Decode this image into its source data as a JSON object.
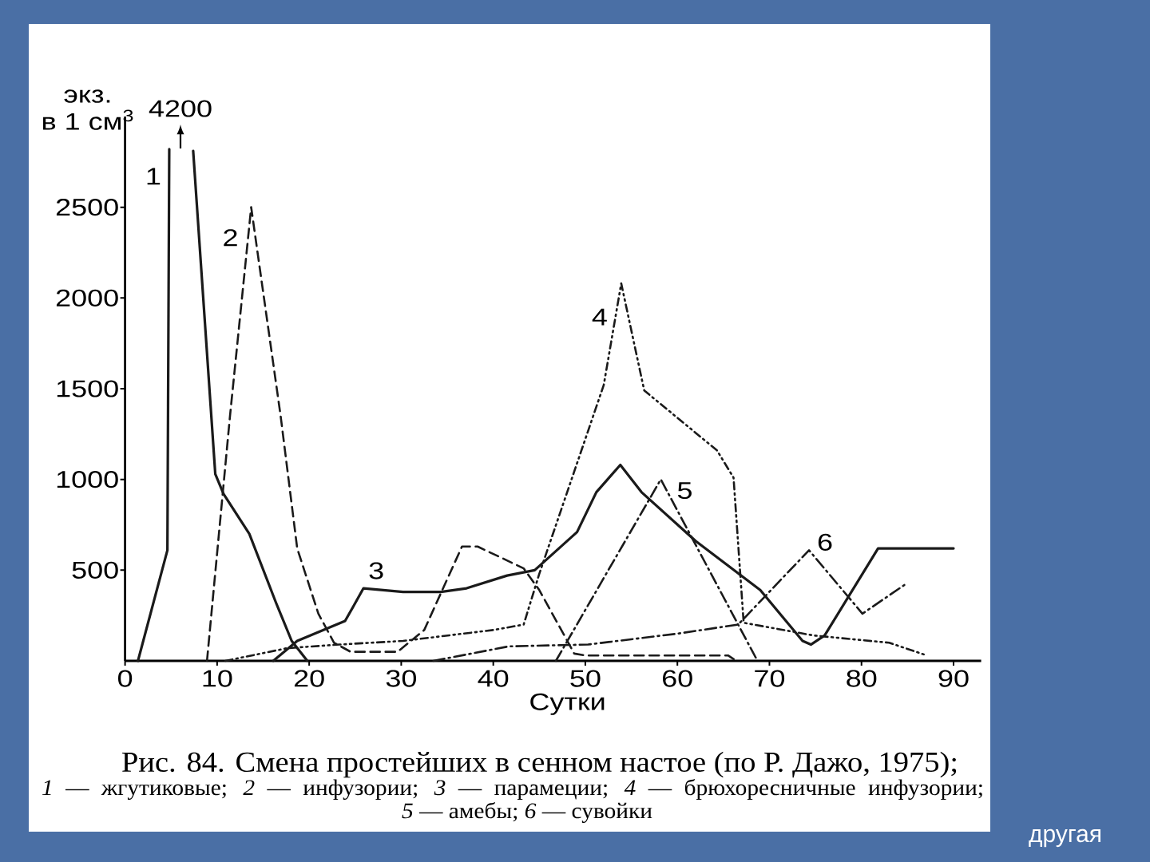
{
  "chart_data": {
    "type": "line",
    "title": "Рис. 84. Смена простейших в сенном настое (по Р. Дажо, 1975);",
    "xlabel": "Сутки",
    "ylabel": "экз. в 1 см$^{3}$",
    "xlim": [
      0,
      93
    ],
    "xticks": [
      0,
      10,
      20,
      30,
      40,
      50,
      60,
      70,
      80,
      90
    ],
    "ylim": [
      0,
      3000
    ],
    "yticks": [
      500,
      1000,
      1500,
      2000,
      2500
    ],
    "annotations": [
      "4200",
      "*1* — жгутиковые; *2* — инфузории; *3* — парамеции; *4* — брюхоресничные инфузории;",
      "*5* — амебы; *6* — сувойки",
      "другая"
    ],
    "series": [
      {
        "name": "1",
        "color": "#1a1a1a",
        "line_style": "solid",
        "x": [
          1.4,
          4.6,
          4.8,
          6.1,
          7.4,
          9.8,
          10.7,
          13.5,
          16.4,
          18.1,
          19.8
        ],
        "values": [
          0,
          610,
          2820,
          null,
          2810,
          1030,
          920,
          700,
          320,
          110,
          0
        ]
      },
      {
        "name": "2",
        "color": "#1a1a1a",
        "line_style": "dashed",
        "x": [
          8.9,
          11.4,
          13.7,
          16.9,
          18.7,
          21.0,
          22.7,
          24.5,
          29.6,
          32.5,
          36.6,
          38.3,
          43.3,
          45.0,
          48.8,
          50.0,
          65.5,
          66.4
        ],
        "values": [
          0,
          1350,
          2500,
          1350,
          620,
          260,
          100,
          50,
          50,
          170,
          630,
          630,
          510,
          390,
          40,
          30,
          30,
          0
        ]
      },
      {
        "name": "3",
        "color": "#1a1a1a",
        "line_style": "solid",
        "x": [
          16.1,
          18.7,
          23.9,
          24.8,
          25.9,
          30.2,
          34.3,
          37.1,
          41.5,
          44.5,
          49.1,
          51.2,
          53.8,
          56.1,
          62.0,
          69.0,
          73.6,
          74.5,
          76.0,
          81.8,
          90.0
        ],
        "values": [
          0,
          110,
          220,
          300,
          400,
          380,
          380,
          400,
          470,
          500,
          710,
          930,
          1080,
          930,
          660,
          390,
          110,
          90,
          140,
          620,
          620
        ]
      },
      {
        "name": "4",
        "color": "#1a1a1a",
        "line_style": "dashdotdot",
        "x": [
          10.9,
          17.6,
          23.3,
          30.2,
          40.0,
          43.3,
          45.0,
          52.0,
          53.9,
          56.4,
          64.3,
          66.1,
          67.2,
          74.8,
          83.0,
          87.1
        ],
        "values": [
          0,
          70,
          90,
          110,
          170,
          200,
          480,
          1520,
          2080,
          1490,
          1160,
          1010,
          210,
          140,
          100,
          30
        ]
      },
      {
        "name": "5",
        "color": "#1a1a1a",
        "line_style": "dashdot",
        "x": [
          46.8,
          58.2,
          68.7
        ],
        "values": [
          0,
          1000,
          0
        ]
      },
      {
        "name": "6",
        "color": "#1a1a1a",
        "line_style": "dashdot",
        "x": [
          33.5,
          41.7,
          50.3,
          60.0,
          66.6,
          74.3,
          80.1,
          85.0
        ],
        "values": [
          0,
          80,
          90,
          150,
          200,
          610,
          260,
          430
        ]
      }
    ]
  }
}
